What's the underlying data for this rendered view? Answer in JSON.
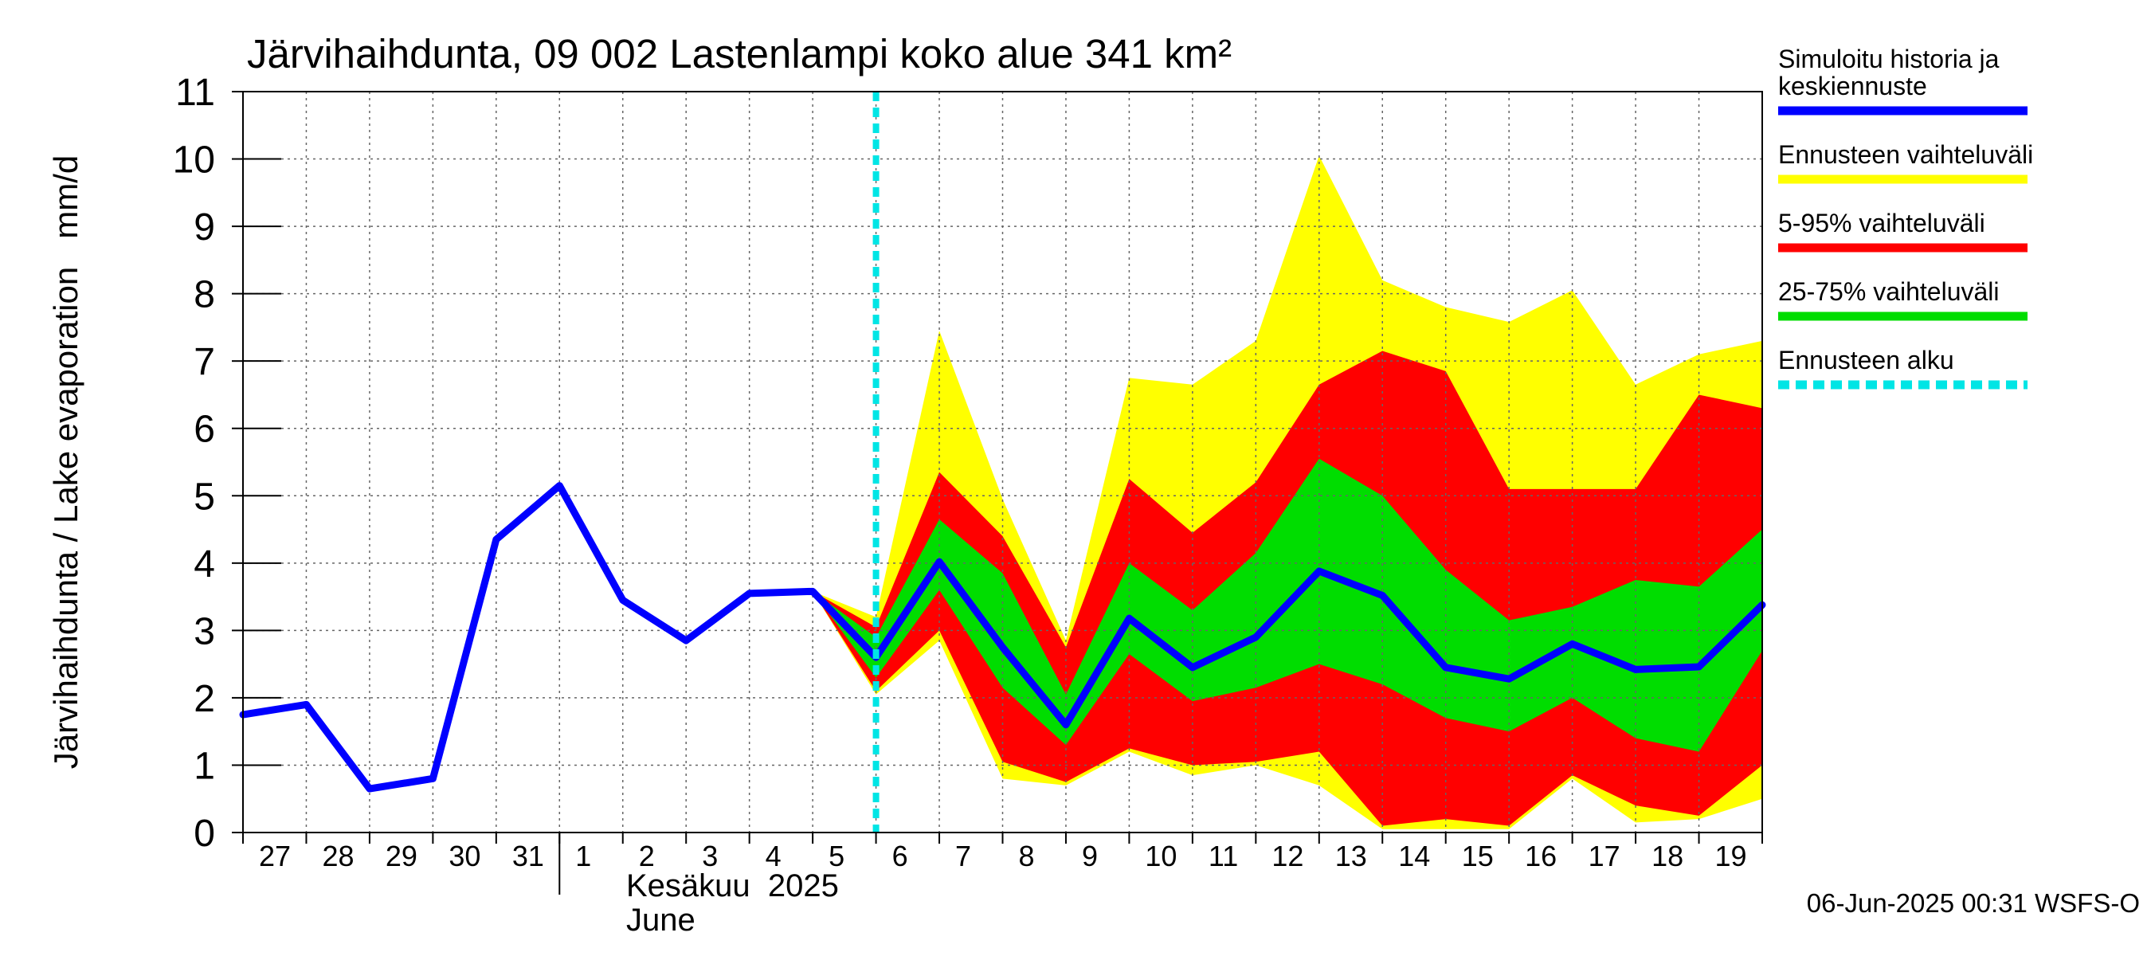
{
  "chart_data": {
    "type": "area",
    "title": "Järvihaihdunta, 09 002 Lastenlampi koko alue 341 km²",
    "ylabel": "Järvihaihdunta / Lake evaporation   mm/d",
    "ylim": [
      0,
      11
    ],
    "yticks": [
      0,
      1,
      2,
      3,
      4,
      5,
      6,
      7,
      8,
      9,
      10,
      11
    ],
    "xlim": [
      0,
      24
    ],
    "x_tick_labels": [
      {
        "x": 0,
        "label": "27"
      },
      {
        "x": 1,
        "label": "28"
      },
      {
        "x": 2,
        "label": "29"
      },
      {
        "x": 3,
        "label": "30"
      },
      {
        "x": 4,
        "label": "31"
      },
      {
        "x": 5,
        "label": "1"
      },
      {
        "x": 6,
        "label": "2"
      },
      {
        "x": 7,
        "label": "3"
      },
      {
        "x": 8,
        "label": "4"
      },
      {
        "x": 9,
        "label": "5"
      },
      {
        "x": 10,
        "label": "6"
      },
      {
        "x": 11,
        "label": "7"
      },
      {
        "x": 12,
        "label": "8"
      },
      {
        "x": 13,
        "label": "9"
      },
      {
        "x": 14,
        "label": "10"
      },
      {
        "x": 15,
        "label": "11"
      },
      {
        "x": 16,
        "label": "12"
      },
      {
        "x": 17,
        "label": "13"
      },
      {
        "x": 18,
        "label": "14"
      },
      {
        "x": 19,
        "label": "15"
      },
      {
        "x": 20,
        "label": "16"
      },
      {
        "x": 21,
        "label": "17"
      },
      {
        "x": 22,
        "label": "18"
      },
      {
        "x": 23,
        "label": "19"
      }
    ],
    "month_label_fi": "Kesäkuu  2025",
    "month_label_en": "June",
    "month_start_x": 5,
    "forecast_start_x": 10,
    "grid": true,
    "legend_position": "right",
    "series": [
      {
        "name": "Simuloitu historia ja keskiennuste",
        "color": "#0000ff",
        "x": [
          0,
          1,
          2,
          3,
          4,
          5,
          6,
          7,
          8,
          9,
          10,
          11,
          12,
          13,
          14,
          15,
          16,
          17,
          18,
          19,
          20,
          21,
          22,
          23,
          24
        ],
        "values": [
          1.75,
          1.9,
          0.65,
          0.8,
          4.35,
          5.15,
          3.45,
          2.85,
          3.55,
          3.58,
          2.6,
          4.02,
          2.75,
          1.6,
          3.18,
          2.45,
          2.9,
          3.88,
          3.52,
          2.45,
          2.28,
          2.8,
          2.42,
          2.46,
          3.38
        ]
      },
      {
        "name": "Ennusteen vaihteluväli",
        "color": "#ffff00",
        "x": [
          9,
          10,
          11,
          12,
          13,
          14,
          15,
          16,
          17,
          18,
          19,
          20,
          21,
          22,
          23,
          24
        ],
        "upper": [
          3.58,
          3.2,
          7.45,
          4.95,
          2.85,
          6.75,
          6.65,
          7.3,
          10.05,
          8.2,
          7.8,
          7.58,
          8.05,
          6.65,
          7.1,
          7.3
        ],
        "lower": [
          3.58,
          2.05,
          2.85,
          0.8,
          0.7,
          1.2,
          0.85,
          1.0,
          0.7,
          0.05,
          0.05,
          0.05,
          0.8,
          0.15,
          0.2,
          0.5
        ]
      },
      {
        "name": "5-95% vaihteluväli",
        "color": "#ff0000",
        "x": [
          9,
          10,
          11,
          12,
          13,
          14,
          15,
          16,
          17,
          18,
          19,
          20,
          21,
          22,
          23,
          24
        ],
        "upper": [
          3.58,
          3.05,
          5.35,
          4.4,
          2.75,
          5.25,
          4.45,
          5.2,
          6.65,
          7.15,
          6.85,
          5.1,
          5.1,
          5.1,
          6.5,
          6.3
        ],
        "lower": [
          3.58,
          2.1,
          3.0,
          1.05,
          0.75,
          1.25,
          1.0,
          1.05,
          1.2,
          0.1,
          0.2,
          0.1,
          0.85,
          0.4,
          0.25,
          1.0
        ]
      },
      {
        "name": "25-75% vaihteluväli",
        "color": "#00dd00",
        "x": [
          9,
          10,
          11,
          12,
          13,
          14,
          15,
          16,
          17,
          18,
          19,
          20,
          21,
          22,
          23,
          24
        ],
        "upper": [
          3.58,
          2.9,
          4.65,
          3.85,
          2.05,
          4.0,
          3.3,
          4.15,
          5.55,
          5.0,
          3.9,
          3.15,
          3.35,
          3.75,
          3.65,
          4.5
        ],
        "lower": [
          3.58,
          2.3,
          3.6,
          2.15,
          1.3,
          2.65,
          1.95,
          2.15,
          2.5,
          2.2,
          1.7,
          1.5,
          2.0,
          1.4,
          1.2,
          2.7
        ]
      }
    ],
    "legend": [
      {
        "label_lines": [
          "Simuloitu historia ja",
          "keskiennuste"
        ],
        "color": "#0000ff",
        "style": "solid"
      },
      {
        "label_lines": [
          "Ennusteen vaihteluväli"
        ],
        "color": "#ffff00",
        "style": "solid"
      },
      {
        "label_lines": [
          "5-95% vaihteluväli"
        ],
        "color": "#ff0000",
        "style": "solid"
      },
      {
        "label_lines": [
          "25-75% vaihteluväli"
        ],
        "color": "#00dd00",
        "style": "solid"
      },
      {
        "label_lines": [
          "Ennusteen alku"
        ],
        "color": "#00e5e5",
        "style": "dashed"
      }
    ],
    "footer": "06-Jun-2025 00:31 WSFS-O"
  }
}
